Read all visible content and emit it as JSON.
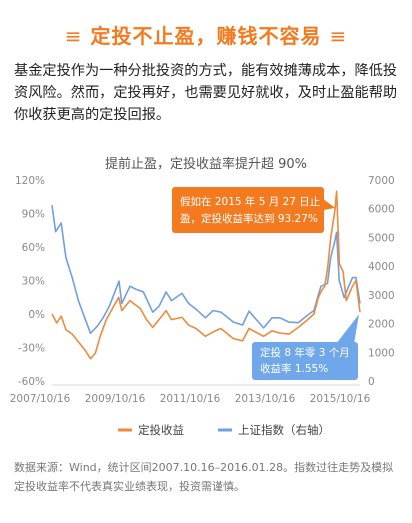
{
  "headline": {
    "deco_left": "≡",
    "text": "定投不止盈，赚钱不容易",
    "deco_right": "≡"
  },
  "intro": "基金定投作为一种分批投资的方式，能有效摊薄成本，降低投资风险。然而，定投再好，也需要见好就收，及时止盈能帮助你收获更高的定投回报。",
  "chart_data": {
    "type": "line",
    "title": "提前止盈，定投收益率提升超 90%",
    "x_ticks": [
      "2007/10/16",
      "2009/10/16",
      "2011/10/16",
      "2013/10/16",
      "2015/10/16"
    ],
    "x_range": [
      "2007-10-16",
      "2016-01-28"
    ],
    "y_left": {
      "ticks": [
        "120%",
        "90%",
        "60%",
        "30%",
        "0%",
        "-30%",
        "-60%"
      ],
      "range": [
        -60,
        120
      ]
    },
    "y_right": {
      "ticks": [
        "7000",
        "6000",
        "5000",
        "4000",
        "3000",
        "2000",
        "1000",
        "0"
      ],
      "range": [
        0,
        7000
      ]
    },
    "series": [
      {
        "name": "定投收益",
        "axis": "left",
        "color": "#ef8a3c",
        "points": [
          [
            "2007-10-16",
            0
          ],
          [
            "2007-12-01",
            -8
          ],
          [
            "2008-01-15",
            -2
          ],
          [
            "2008-03-01",
            -14
          ],
          [
            "2008-05-01",
            -18
          ],
          [
            "2008-07-01",
            -25
          ],
          [
            "2008-09-01",
            -32
          ],
          [
            "2008-10-28",
            -40
          ],
          [
            "2008-12-15",
            -35
          ],
          [
            "2009-02-01",
            -20
          ],
          [
            "2009-04-01",
            -5
          ],
          [
            "2009-06-01",
            5
          ],
          [
            "2009-08-01",
            15
          ],
          [
            "2009-09-01",
            3
          ],
          [
            "2009-11-20",
            12
          ],
          [
            "2010-01-15",
            8
          ],
          [
            "2010-03-01",
            5
          ],
          [
            "2010-05-01",
            -5
          ],
          [
            "2010-07-01",
            -12
          ],
          [
            "2010-09-01",
            -5
          ],
          [
            "2010-11-10",
            3
          ],
          [
            "2011-01-01",
            -5
          ],
          [
            "2011-04-15",
            -3
          ],
          [
            "2011-06-20",
            -10
          ],
          [
            "2011-09-01",
            -13
          ],
          [
            "2011-12-01",
            -20
          ],
          [
            "2012-02-15",
            -16
          ],
          [
            "2012-05-01",
            -13
          ],
          [
            "2012-09-01",
            -22
          ],
          [
            "2012-12-01",
            -24
          ],
          [
            "2013-02-01",
            -13
          ],
          [
            "2013-06-25",
            -20
          ],
          [
            "2013-09-15",
            -15
          ],
          [
            "2013-12-01",
            -17
          ],
          [
            "2014-03-01",
            -18
          ],
          [
            "2014-06-01",
            -12
          ],
          [
            "2014-09-01",
            -5
          ],
          [
            "2014-11-01",
            0
          ],
          [
            "2014-12-15",
            15
          ],
          [
            "2015-01-10",
            20
          ],
          [
            "2015-02-15",
            25
          ],
          [
            "2015-03-15",
            40
          ],
          [
            "2015-04-15",
            68
          ],
          [
            "2015-05-27",
            93.27
          ],
          [
            "2015-06-12",
            110
          ],
          [
            "2015-07-10",
            45
          ],
          [
            "2015-08-15",
            38
          ],
          [
            "2015-09-15",
            12
          ],
          [
            "2015-11-15",
            25
          ],
          [
            "2015-12-20",
            30
          ],
          [
            "2016-01-28",
            1.55
          ]
        ]
      },
      {
        "name": "上证指数（右轴）",
        "axis": "right",
        "color": "#6f9fe0",
        "points": [
          [
            "2007-10-16",
            6124
          ],
          [
            "2007-11-20",
            5200
          ],
          [
            "2008-01-14",
            5500
          ],
          [
            "2008-03-01",
            4300
          ],
          [
            "2008-05-01",
            3600
          ],
          [
            "2008-07-01",
            2800
          ],
          [
            "2008-09-01",
            2200
          ],
          [
            "2008-10-28",
            1664
          ],
          [
            "2009-01-01",
            1900
          ],
          [
            "2009-03-01",
            2200
          ],
          [
            "2009-05-01",
            2600
          ],
          [
            "2009-08-04",
            3478
          ],
          [
            "2009-09-01",
            2700
          ],
          [
            "2009-11-20",
            3300
          ],
          [
            "2010-01-15",
            3200
          ],
          [
            "2010-04-01",
            3100
          ],
          [
            "2010-07-01",
            2400
          ],
          [
            "2010-09-01",
            2600
          ],
          [
            "2010-11-10",
            3100
          ],
          [
            "2011-01-01",
            2800
          ],
          [
            "2011-04-15",
            3050
          ],
          [
            "2011-06-20",
            2700
          ],
          [
            "2011-09-01",
            2500
          ],
          [
            "2011-12-01",
            2200
          ],
          [
            "2012-02-15",
            2450
          ],
          [
            "2012-05-01",
            2400
          ],
          [
            "2012-09-01",
            2050
          ],
          [
            "2012-12-01",
            1950
          ],
          [
            "2013-02-01",
            2430
          ],
          [
            "2013-06-25",
            1850
          ],
          [
            "2013-09-15",
            2200
          ],
          [
            "2013-12-01",
            2200
          ],
          [
            "2014-03-01",
            2050
          ],
          [
            "2014-06-01",
            2030
          ],
          [
            "2014-09-01",
            2300
          ],
          [
            "2014-11-01",
            2450
          ],
          [
            "2014-12-15",
            3000
          ],
          [
            "2015-01-10",
            3300
          ],
          [
            "2015-03-15",
            3400
          ],
          [
            "2015-04-15",
            4300
          ],
          [
            "2015-05-27",
            4900
          ],
          [
            "2015-06-12",
            5178
          ],
          [
            "2015-07-08",
            3500
          ],
          [
            "2015-08-26",
            2900
          ],
          [
            "2015-09-15",
            3100
          ],
          [
            "2015-11-15",
            3600
          ],
          [
            "2015-12-20",
            3600
          ],
          [
            "2016-01-28",
            2700
          ]
        ]
      }
    ],
    "annotations": [
      {
        "lines": [
          "假如在 2015 年 5 月 27 日止",
          "盈，定投收益率达到 93.27%"
        ],
        "at": [
          "2015-05-27",
          93.27
        ],
        "color": "#f47a20"
      },
      {
        "lines": [
          "定投 8 年零 3 个月",
          "收益率 1.55%"
        ],
        "at": [
          "2016-01-28",
          1.55
        ],
        "color": "#6fa7ea"
      }
    ],
    "legend": {
      "placement": "bottom"
    },
    "grid": false
  },
  "footnote": "数据来源：Wind，统计区间2007.10.16–2016.01.28。指数过往走势及模拟定投收益率不代表真实业绩表现，投资需谨慎。"
}
